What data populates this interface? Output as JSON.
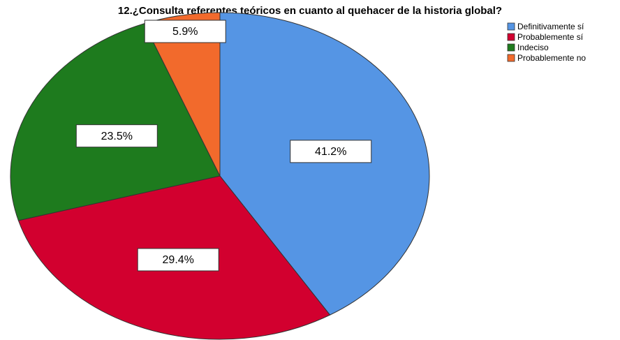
{
  "chart_data": {
    "type": "pie",
    "title": "12.¿Consulta referentes teóricos en cuanto al quehacer de la historia global?",
    "categories": [
      "Definitivamente sí",
      "Probablemente sí",
      "Indeciso",
      "Probablemente no"
    ],
    "values": [
      41.2,
      29.4,
      23.5,
      5.9
    ],
    "value_labels": [
      "41.2%",
      "29.4%",
      "23.5%",
      "5.9%"
    ],
    "colors": [
      "#5595e4",
      "#d2002f",
      "#1e7b1e",
      "#f26a2c"
    ],
    "legend": "upper right"
  }
}
